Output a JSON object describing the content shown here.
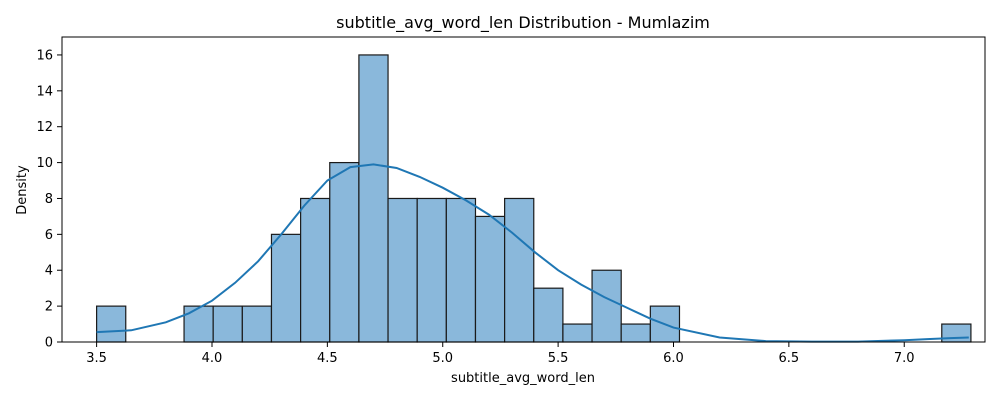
{
  "chart_data": {
    "type": "bar",
    "title": "subtitle_avg_word_len Distribution - Mumlazim",
    "xlabel": "subtitle_avg_word_len",
    "ylabel": "Density",
    "xlim": [
      3.35,
      7.35
    ],
    "ylim": [
      0,
      17
    ],
    "x_ticks": [
      3.5,
      4.0,
      4.5,
      5.0,
      5.5,
      6.0,
      6.5,
      7.0
    ],
    "x_tick_labels": [
      "3.5",
      "4.0",
      "4.5",
      "5.0",
      "5.5",
      "6.0",
      "6.5",
      "7.0"
    ],
    "y_ticks": [
      0,
      2,
      4,
      6,
      8,
      10,
      12,
      14,
      16
    ],
    "y_tick_labels": [
      "0",
      "2",
      "4",
      "6",
      "8",
      "10",
      "12",
      "14",
      "16"
    ],
    "bin_start": 3.5,
    "bin_width": 0.1263,
    "values": [
      2,
      0,
      0,
      2,
      2,
      2,
      6,
      8,
      10,
      16,
      8,
      8,
      8,
      7,
      8,
      3,
      1,
      4,
      1,
      2,
      0,
      0,
      0,
      0,
      0,
      0,
      0,
      0,
      0,
      1
    ],
    "bar_fill": "#8ab8db",
    "bar_edge": "#1a1a1a",
    "kde": {
      "x": [
        3.5,
        3.65,
        3.8,
        3.9,
        4.0,
        4.1,
        4.2,
        4.3,
        4.4,
        4.5,
        4.6,
        4.7,
        4.8,
        4.9,
        5.0,
        5.1,
        5.2,
        5.3,
        5.4,
        5.5,
        5.6,
        5.7,
        5.8,
        5.9,
        6.0,
        6.2,
        6.4,
        6.6,
        6.8,
        7.0,
        7.1,
        7.2,
        7.28
      ],
      "y": [
        0.55,
        0.65,
        1.1,
        1.6,
        2.3,
        3.3,
        4.5,
        6.0,
        7.6,
        9.0,
        9.75,
        9.9,
        9.7,
        9.2,
        8.6,
        7.9,
        7.1,
        6.1,
        5.0,
        4.0,
        3.2,
        2.5,
        1.9,
        1.3,
        0.8,
        0.25,
        0.05,
        0.02,
        0.02,
        0.1,
        0.16,
        0.22,
        0.25
      ],
      "color": "#1f77b4"
    }
  }
}
